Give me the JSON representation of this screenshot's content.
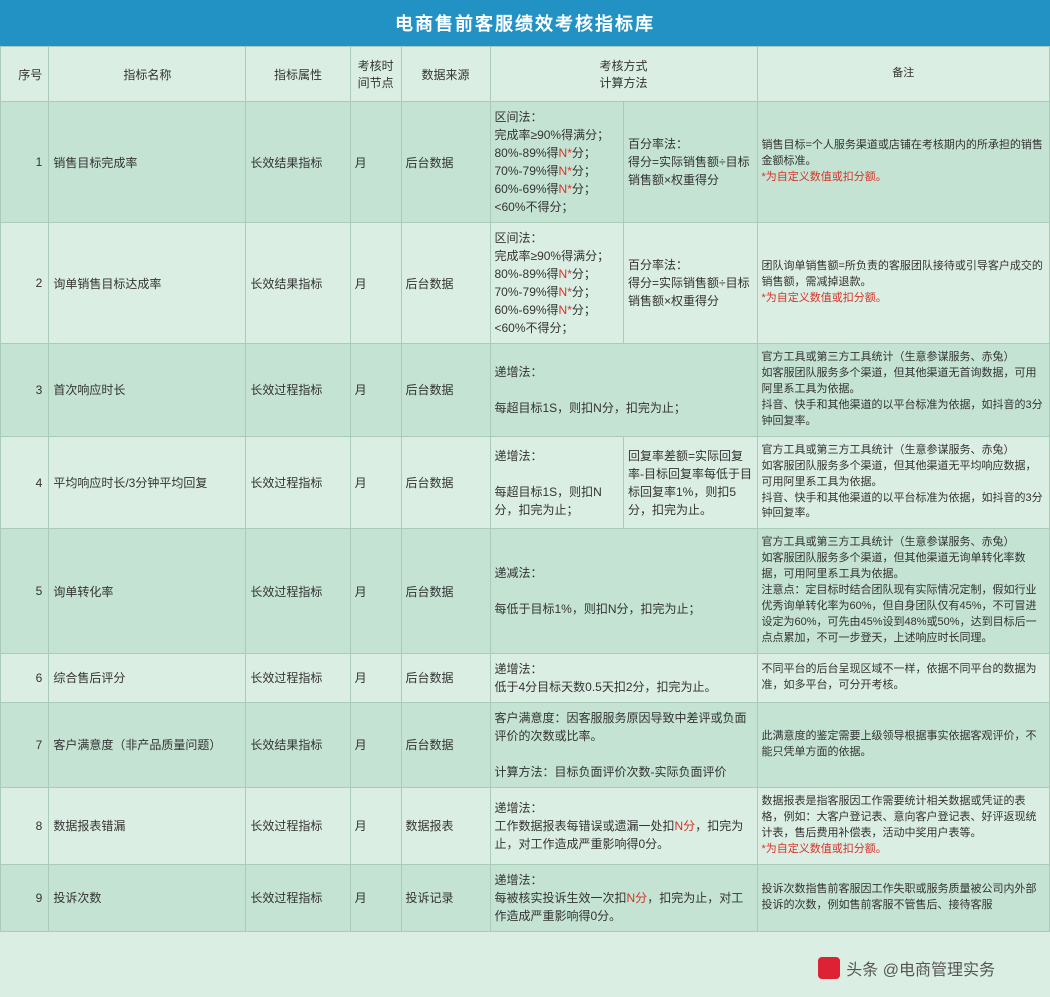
{
  "title": "电商售前客服绩效考核指标库",
  "headers": {
    "seq": "序号",
    "name": "指标名称",
    "attr": "指标属性",
    "time": "考核时间节点",
    "src": "数据来源",
    "method": "考核方式\n计算方法",
    "note": "备注"
  },
  "watermark": "头条 @电商管理实务",
  "rows": [
    {
      "seq": "1",
      "name": "销售目标完成率",
      "attr": "长效结果指标",
      "time": "月",
      "src": "后台数据",
      "m1_lines": [
        {
          "t": "区间法："
        },
        {
          "t": "完成率≥90%得满分；"
        },
        {
          "pre": "80%-89%得",
          "red": "N*",
          "post": "分；"
        },
        {
          "pre": "70%-79%得",
          "red": "N*",
          "post": "分；"
        },
        {
          "pre": "60%-69%得",
          "red": "N*",
          "post": "分；"
        },
        {
          "t": "<60%不得分；"
        }
      ],
      "m2_lines": [
        {
          "t": "百分率法："
        },
        {
          "t": "得分=实际销售额÷目标销售额×权重得分"
        }
      ],
      "note_lines": [
        {
          "t": "销售目标=个人服务渠道或店铺在考核期内的所承担的销售金额标准。"
        },
        {
          "red": "*为自定义数值或扣分额。"
        }
      ]
    },
    {
      "seq": "2",
      "name": "询单销售目标达成率",
      "attr": "长效结果指标",
      "time": "月",
      "src": "后台数据",
      "m1_lines": [
        {
          "t": "区间法："
        },
        {
          "t": "完成率≥90%得满分；"
        },
        {
          "pre": "80%-89%得",
          "red": "N*",
          "post": "分；"
        },
        {
          "pre": "70%-79%得",
          "red": "N*",
          "post": "分；"
        },
        {
          "pre": "60%-69%得",
          "red": "N*",
          "post": "分；"
        },
        {
          "t": "<60%不得分；"
        }
      ],
      "m2_lines": [
        {
          "t": "百分率法："
        },
        {
          "t": "得分=实际销售额÷目标销售额×权重得分"
        }
      ],
      "note_lines": [
        {
          "t": "团队询单销售额=所负责的客服团队接待或引导客户成交的销售额，需减掉退款。"
        },
        {
          "red": "*为自定义数值或扣分额。"
        }
      ]
    },
    {
      "seq": "3",
      "name": "首次响应时长",
      "attr": "长效过程指标",
      "time": "月",
      "src": "后台数据",
      "m1_lines": [
        {
          "t": "递增法："
        },
        {
          "t": ""
        },
        {
          "t": "每超目标1S，则扣N分，扣完为止；"
        }
      ],
      "m2_lines": [],
      "note_lines": [
        {
          "t": "官方工具或第三方工具统计（生意参谋服务、赤兔）"
        },
        {
          "t": "如客服团队服务多个渠道，但其他渠道无首询数据，可用阿里系工具为依据。"
        },
        {
          "t": "抖音、快手和其他渠道的以平台标准为依据，如抖音的3分钟回复率。"
        }
      ]
    },
    {
      "seq": "4",
      "name": "平均响应时长/3分钟平均回复",
      "attr": "长效过程指标",
      "time": "月",
      "src": "后台数据",
      "m1_lines": [
        {
          "t": "递增法："
        },
        {
          "t": ""
        },
        {
          "t": "每超目标1S，则扣N分，扣完为止；"
        }
      ],
      "m2_lines": [
        {
          "t": "回复率差额=实际回复率-目标回复率每低于目标回复率1%，则扣5分，扣完为止。"
        }
      ],
      "note_lines": [
        {
          "t": "官方工具或第三方工具统计（生意参谋服务、赤兔）"
        },
        {
          "t": "如客服团队服务多个渠道，但其他渠道无平均响应数据，可用阿里系工具为依据。"
        },
        {
          "t": "抖音、快手和其他渠道的以平台标准为依据，如抖音的3分钟回复率。"
        }
      ]
    },
    {
      "seq": "5",
      "name": "询单转化率",
      "attr": "长效过程指标",
      "time": "月",
      "src": "后台数据",
      "m1_lines": [
        {
          "t": "递减法："
        },
        {
          "t": ""
        },
        {
          "t": "每低于目标1%，则扣N分，扣完为止；"
        }
      ],
      "m2_lines": [],
      "note_lines": [
        {
          "t": "官方工具或第三方工具统计（生意参谋服务、赤兔）"
        },
        {
          "t": "如客服团队服务多个渠道，但其他渠道无询单转化率数据，可用阿里系工具为依据。"
        },
        {
          "t": "注意点：定目标时结合团队现有实际情况定制，假如行业优秀询单转化率为60%，但自身团队仅有45%，不可冒进设定为60%，可先由45%设到48%或50%，达到目标后一点点累加，不可一步登天，上述响应时长同理。"
        }
      ]
    },
    {
      "seq": "6",
      "name": "综合售后评分",
      "attr": "长效过程指标",
      "time": "月",
      "src": "后台数据",
      "m1_lines": [
        {
          "t": "递增法："
        },
        {
          "t": "低于4分目标天数0.5天扣2分，扣完为止。"
        }
      ],
      "m2_lines": [],
      "note_lines": [
        {
          "t": "不同平台的后台呈现区域不一样，依据不同平台的数据为准，如多平台，可分开考核。"
        }
      ]
    },
    {
      "seq": "7",
      "name": "客户满意度（非产品质量问题）",
      "attr": "长效结果指标",
      "time": "月",
      "src": "后台数据",
      "m1_lines": [
        {
          "t": "客户满意度：因客服服务原因导致中差评或负面评价的次数或比率。"
        },
        {
          "t": ""
        },
        {
          "t": "计算方法：目标负面评价次数-实际负面评价"
        }
      ],
      "m2_lines": [],
      "note_lines": [
        {
          "t": "此满意度的鉴定需要上级领导根据事实依据客观评价，不能只凭单方面的依据。"
        }
      ]
    },
    {
      "seq": "8",
      "name": "数据报表错漏",
      "attr": "长效过程指标",
      "time": "月",
      "src": "数据报表",
      "m1_lines": [
        {
          "t": "递增法："
        },
        {
          "pre": "工作数据报表每错误或遗漏一处扣",
          "red": "N分",
          "post": "，扣完为止，对工作造成严重影响得0分。"
        }
      ],
      "m2_lines": [],
      "note_lines": [
        {
          "t": "数据报表是指客服因工作需要统计相关数据或凭证的表格，例如：大客户登记表、意向客户登记表、好评返现统计表，售后费用补偿表，活动中奖用户表等。"
        },
        {
          "red": "*为自定义数值或扣分额。"
        }
      ]
    },
    {
      "seq": "9",
      "name": "投诉次数",
      "attr": "长效过程指标",
      "time": "月",
      "src": "投诉记录",
      "m1_lines": [
        {
          "t": "递增法："
        },
        {
          "pre": "每被核实投诉生效一次扣",
          "red": "N分",
          "post": "，扣完为止，对工作造成严重影响得0分。"
        }
      ],
      "m2_lines": [],
      "note_lines": [
        {
          "t": "投诉次数指售前客服因工作失职或服务质量被公司内外部投诉的次数，例如售前客服不管售后、接待客服"
        }
      ]
    }
  ]
}
